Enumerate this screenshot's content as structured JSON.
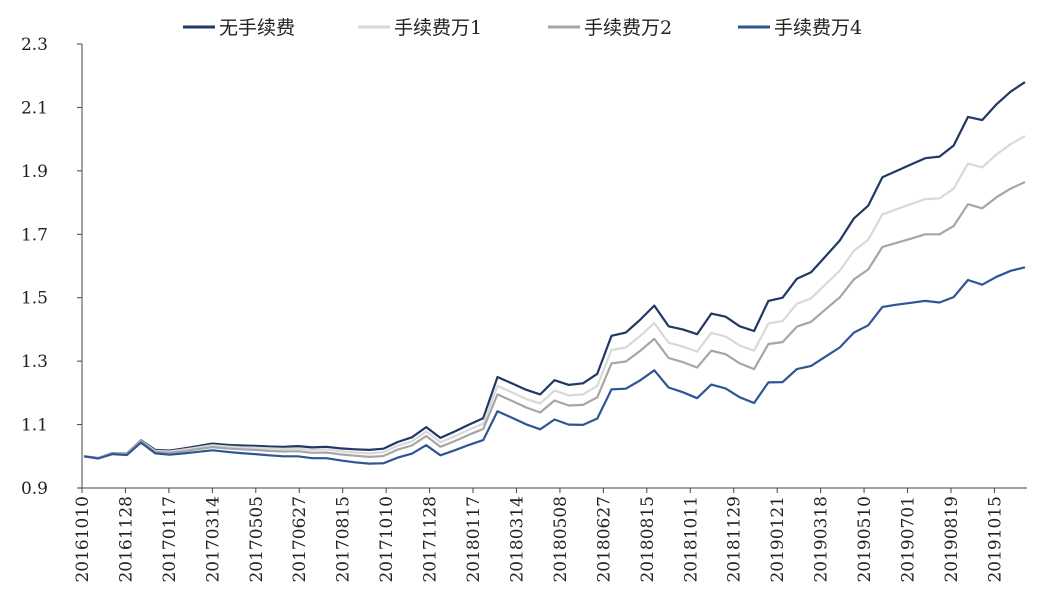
{
  "chart_data": {
    "type": "line",
    "title": "",
    "xlabel": "",
    "ylabel": "",
    "ylim": [
      0.9,
      2.3
    ],
    "yticks": [
      "0.9",
      "1.1",
      "1.3",
      "1.5",
      "1.7",
      "1.9",
      "2.1",
      "2.3"
    ],
    "grid": false,
    "legend": "top",
    "xticks": [
      "20161010",
      "20161128",
      "20170117",
      "20170314",
      "20170505",
      "20170627",
      "20170815",
      "20171010",
      "20171128",
      "20180117",
      "20180314",
      "20180508",
      "20180627",
      "20180815",
      "20181011",
      "20181129",
      "20190121",
      "20190318",
      "20190510",
      "20190701",
      "20190819",
      "20191015"
    ],
    "series": [
      {
        "name": "无手续费",
        "color": "#1f3864",
        "values": [
          1.0,
          0.995,
          1.01,
          1.008,
          1.05,
          1.02,
          1.018,
          1.025,
          1.032,
          1.04,
          1.036,
          1.034,
          1.033,
          1.031,
          1.03,
          1.032,
          1.028,
          1.03,
          1.025,
          1.022,
          1.02,
          1.024,
          1.045,
          1.06,
          1.092,
          1.058,
          1.078,
          1.1,
          1.12,
          1.25,
          1.23,
          1.21,
          1.195,
          1.24,
          1.225,
          1.23,
          1.26,
          1.38,
          1.39,
          1.43,
          1.475,
          1.41,
          1.4,
          1.385,
          1.45,
          1.44,
          1.41,
          1.395,
          1.49,
          1.5,
          1.56,
          1.58,
          1.63,
          1.68,
          1.75,
          1.79,
          1.88,
          1.9,
          1.92,
          1.94,
          1.945,
          1.98,
          2.07,
          2.06,
          2.11,
          2.15,
          2.18
        ]
      },
      {
        "name": "手续费万1",
        "color": "#d9d9d9",
        "values": [
          1.0,
          0.995,
          1.009,
          1.007,
          1.048,
          1.017,
          1.015,
          1.021,
          1.028,
          1.035,
          1.031,
          1.028,
          1.027,
          1.025,
          1.023,
          1.024,
          1.02,
          1.022,
          1.016,
          1.012,
          1.009,
          1.013,
          1.033,
          1.047,
          1.078,
          1.044,
          1.063,
          1.084,
          1.103,
          1.222,
          1.202,
          1.181,
          1.166,
          1.207,
          1.192,
          1.195,
          1.222,
          1.335,
          1.343,
          1.379,
          1.42,
          1.358,
          1.346,
          1.33,
          1.389,
          1.378,
          1.349,
          1.333,
          1.419,
          1.427,
          1.481,
          1.498,
          1.542,
          1.585,
          1.648,
          1.683,
          1.763,
          1.779,
          1.795,
          1.811,
          1.813,
          1.844,
          1.923,
          1.911,
          1.952,
          1.984,
          2.01
        ]
      },
      {
        "name": "手续费万2",
        "color": "#a6a6a6",
        "values": [
          1.0,
          0.994,
          1.008,
          1.006,
          1.046,
          1.014,
          1.011,
          1.016,
          1.023,
          1.029,
          1.025,
          1.022,
          1.02,
          1.017,
          1.015,
          1.016,
          1.011,
          1.012,
          1.006,
          1.002,
          0.998,
          1.001,
          1.021,
          1.034,
          1.064,
          1.03,
          1.048,
          1.068,
          1.086,
          1.195,
          1.175,
          1.154,
          1.138,
          1.176,
          1.16,
          1.162,
          1.186,
          1.293,
          1.299,
          1.332,
          1.37,
          1.31,
          1.297,
          1.28,
          1.333,
          1.322,
          1.293,
          1.275,
          1.354,
          1.36,
          1.409,
          1.424,
          1.463,
          1.501,
          1.558,
          1.589,
          1.66,
          1.673,
          1.686,
          1.7,
          1.7,
          1.726,
          1.795,
          1.782,
          1.817,
          1.844,
          1.865
        ]
      },
      {
        "name": "手续费万4",
        "color": "#2f5597",
        "values": [
          1.0,
          0.993,
          1.007,
          1.004,
          1.043,
          1.009,
          1.005,
          1.009,
          1.014,
          1.019,
          1.014,
          1.01,
          1.007,
          1.003,
          1.0,
          1.0,
          0.994,
          0.994,
          0.987,
          0.981,
          0.977,
          0.978,
          0.996,
          1.008,
          1.035,
          1.003,
          1.019,
          1.036,
          1.051,
          1.142,
          1.122,
          1.101,
          1.085,
          1.116,
          1.1,
          1.099,
          1.119,
          1.211,
          1.213,
          1.239,
          1.271,
          1.217,
          1.202,
          1.183,
          1.226,
          1.214,
          1.186,
          1.168,
          1.233,
          1.234,
          1.275,
          1.285,
          1.314,
          1.343,
          1.39,
          1.413,
          1.471,
          1.478,
          1.484,
          1.49,
          1.485,
          1.502,
          1.556,
          1.541,
          1.566,
          1.585,
          1.596
        ]
      }
    ]
  }
}
